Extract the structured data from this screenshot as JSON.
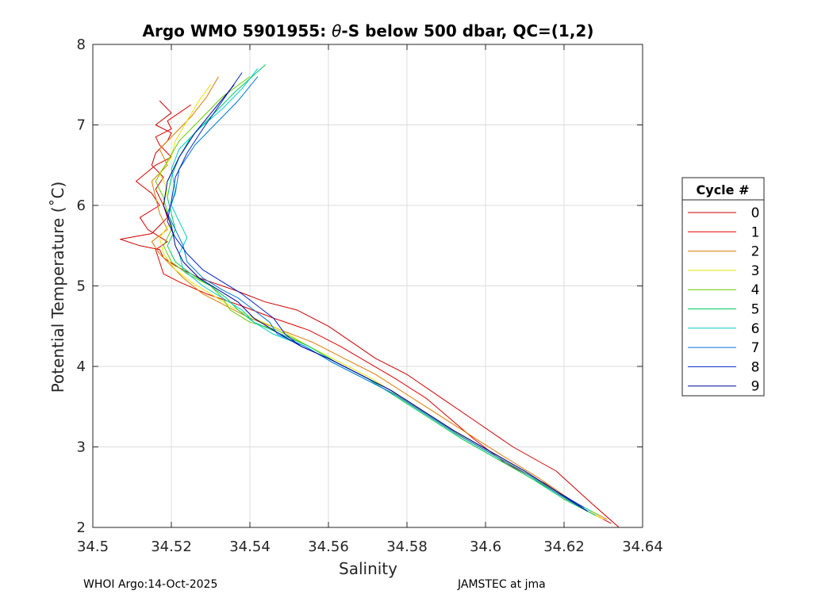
{
  "chart_data": {
    "type": "line",
    "title": "Argo WMO 5901955: θ-S below 500 dbar,  QC=(1,2)",
    "title_parts": {
      "prefix": "Argo WMO 5901955: ",
      "symbol": "θ",
      "suffix": "-S below 500 dbar,  QC=(1,2)"
    },
    "xlabel": "Salinity",
    "ylabel": "Potential Temperature (˚C)",
    "xlim": [
      34.5,
      34.64
    ],
    "ylim": [
      2,
      8
    ],
    "xticks": [
      "34.5",
      "34.52",
      "34.54",
      "34.56",
      "34.58",
      "34.6",
      "34.62",
      "34.64"
    ],
    "yticks": [
      "2",
      "3",
      "4",
      "5",
      "6",
      "7",
      "8"
    ],
    "grid": true,
    "legend": {
      "title": "Cycle #",
      "placement": "outside-right"
    },
    "series": [
      {
        "name": "0",
        "color": "#cc0000",
        "x": [
          34.634,
          34.627,
          34.618,
          34.607,
          34.598,
          34.589,
          34.58,
          34.572,
          34.566,
          34.56,
          34.552,
          34.544,
          34.536,
          34.527,
          34.521,
          34.518,
          34.517,
          34.512,
          34.507,
          34.515,
          34.517,
          34.519,
          34.518,
          34.516,
          34.518,
          34.515,
          34.516,
          34.519,
          34.52,
          34.516,
          34.52,
          34.517
        ],
        "y": [
          2.0,
          2.3,
          2.7,
          3.0,
          3.3,
          3.6,
          3.9,
          4.1,
          4.3,
          4.5,
          4.7,
          4.8,
          4.95,
          5.1,
          5.25,
          5.35,
          5.45,
          5.5,
          5.58,
          5.65,
          5.75,
          5.85,
          6.0,
          6.2,
          6.35,
          6.5,
          6.65,
          6.8,
          6.9,
          7.0,
          7.15,
          7.3
        ]
      },
      {
        "name": "1",
        "color": "#e00000",
        "x": [
          34.632,
          34.624,
          34.615,
          34.605,
          34.597,
          34.591,
          34.585,
          34.577,
          34.57,
          34.563,
          34.555,
          34.546,
          34.538,
          34.529,
          34.522,
          34.518,
          34.517,
          34.516,
          34.519,
          34.514,
          34.512,
          34.517,
          34.515,
          34.511,
          34.516,
          34.52,
          34.517,
          34.516,
          34.52,
          34.519,
          34.522,
          34.525
        ],
        "y": [
          2.05,
          2.25,
          2.55,
          2.8,
          3.1,
          3.35,
          3.6,
          3.85,
          4.05,
          4.25,
          4.45,
          4.6,
          4.75,
          4.9,
          5.05,
          5.15,
          5.3,
          5.45,
          5.55,
          5.7,
          5.85,
          6.0,
          6.15,
          6.3,
          6.5,
          6.6,
          6.75,
          6.85,
          6.95,
          7.05,
          7.15,
          7.25
        ]
      },
      {
        "name": "2",
        "color": "#e07a00",
        "x": [
          34.631,
          34.623,
          34.614,
          34.604,
          34.596,
          34.588,
          34.58,
          34.572,
          34.564,
          34.556,
          34.548,
          34.54,
          34.534,
          34.528,
          34.523,
          34.52,
          34.517,
          34.515,
          34.519,
          34.517,
          34.516,
          34.515,
          34.519,
          34.517,
          34.521,
          34.525,
          34.529,
          34.532
        ],
        "y": [
          2.1,
          2.3,
          2.6,
          2.9,
          3.15,
          3.4,
          3.65,
          3.9,
          4.1,
          4.3,
          4.45,
          4.6,
          4.75,
          4.9,
          5.1,
          5.25,
          5.4,
          5.55,
          5.7,
          5.9,
          6.1,
          6.3,
          6.5,
          6.7,
          6.9,
          7.1,
          7.35,
          7.6
        ]
      },
      {
        "name": "3",
        "color": "#e6e600",
        "x": [
          34.63,
          34.622,
          34.613,
          34.604,
          34.595,
          34.587,
          34.579,
          34.571,
          34.563,
          34.555,
          34.548,
          34.541,
          34.535,
          34.53,
          34.525,
          34.521,
          34.518,
          34.517,
          34.52,
          34.518,
          34.519,
          34.517,
          34.52,
          34.521,
          34.524,
          34.527,
          34.53
        ],
        "y": [
          2.1,
          2.3,
          2.6,
          2.85,
          3.1,
          3.35,
          3.6,
          3.85,
          4.05,
          4.25,
          4.45,
          4.6,
          4.75,
          4.9,
          5.05,
          5.2,
          5.4,
          5.6,
          5.8,
          6.0,
          6.2,
          6.4,
          6.6,
          6.8,
          7.05,
          7.3,
          7.5
        ]
      },
      {
        "name": "4",
        "color": "#66cc00",
        "x": [
          34.629,
          34.621,
          34.612,
          34.603,
          34.594,
          34.586,
          34.578,
          34.57,
          34.562,
          34.555,
          34.547,
          34.54,
          34.535,
          34.533,
          34.53,
          34.524,
          34.52,
          34.518,
          34.52,
          34.519,
          34.518,
          34.516,
          34.519,
          34.522,
          34.527,
          34.533,
          34.54
        ],
        "y": [
          2.15,
          2.35,
          2.6,
          2.85,
          3.1,
          3.35,
          3.6,
          3.85,
          4.05,
          4.25,
          4.45,
          4.55,
          4.7,
          4.85,
          5.0,
          5.15,
          5.3,
          5.5,
          5.7,
          5.9,
          6.1,
          6.3,
          6.55,
          6.8,
          7.05,
          7.35,
          7.6
        ]
      },
      {
        "name": "5",
        "color": "#00cc66",
        "x": [
          34.628,
          34.62,
          34.612,
          34.603,
          34.594,
          34.586,
          34.578,
          34.57,
          34.562,
          34.555,
          34.548,
          34.541,
          34.537,
          34.534,
          34.53,
          34.525,
          34.521,
          34.519,
          34.521,
          34.52,
          34.519,
          34.52,
          34.522,
          34.525,
          34.53,
          34.536,
          34.544
        ],
        "y": [
          2.15,
          2.35,
          2.6,
          2.85,
          3.1,
          3.35,
          3.6,
          3.85,
          4.05,
          4.25,
          4.4,
          4.55,
          4.7,
          4.85,
          5.0,
          5.15,
          5.3,
          5.5,
          5.7,
          5.9,
          6.1,
          6.35,
          6.6,
          6.85,
          7.1,
          7.4,
          7.75
        ]
      },
      {
        "name": "6",
        "color": "#00cccc",
        "x": [
          34.627,
          34.619,
          34.611,
          34.602,
          34.593,
          34.585,
          34.577,
          34.569,
          34.561,
          34.554,
          34.546,
          34.541,
          34.538,
          34.533,
          34.528,
          34.523,
          34.522,
          34.524,
          34.522,
          34.52,
          34.521,
          34.52,
          34.522,
          34.527,
          34.533,
          34.538,
          34.542
        ],
        "y": [
          2.2,
          2.4,
          2.65,
          2.9,
          3.15,
          3.4,
          3.65,
          3.85,
          4.05,
          4.25,
          4.4,
          4.55,
          4.7,
          4.85,
          5.0,
          5.2,
          5.4,
          5.6,
          5.8,
          6.0,
          6.2,
          6.45,
          6.7,
          6.95,
          7.2,
          7.45,
          7.7
        ]
      },
      {
        "name": "7",
        "color": "#0077dd",
        "x": [
          34.626,
          34.619,
          34.611,
          34.602,
          34.593,
          34.585,
          34.577,
          34.569,
          34.561,
          34.554,
          34.547,
          34.545,
          34.541,
          34.537,
          34.533,
          34.528,
          34.524,
          34.523,
          34.521,
          34.519,
          34.521,
          34.522,
          34.526,
          34.531,
          34.537,
          34.542
        ],
        "y": [
          2.2,
          2.4,
          2.65,
          2.9,
          3.15,
          3.4,
          3.65,
          3.85,
          4.05,
          4.25,
          4.4,
          4.55,
          4.7,
          4.85,
          4.95,
          5.1,
          5.3,
          5.5,
          5.7,
          5.9,
          6.15,
          6.45,
          6.75,
          7.0,
          7.3,
          7.6
        ]
      },
      {
        "name": "8",
        "color": "#0022cc",
        "x": [
          34.625,
          34.618,
          34.61,
          34.601,
          34.592,
          34.584,
          34.576,
          34.568,
          34.56,
          34.553,
          34.549,
          34.546,
          34.542,
          34.538,
          34.533,
          34.528,
          34.524,
          34.521,
          34.519,
          34.52,
          34.521,
          34.524,
          34.528,
          34.533,
          34.538
        ],
        "y": [
          2.25,
          2.45,
          2.7,
          2.95,
          3.2,
          3.45,
          3.7,
          3.9,
          4.1,
          4.25,
          4.4,
          4.6,
          4.75,
          4.9,
          5.05,
          5.2,
          5.4,
          5.6,
          5.8,
          6.05,
          6.35,
          6.65,
          6.95,
          7.3,
          7.65
        ]
      },
      {
        "name": "9",
        "color": "#000099",
        "x": [
          34.626,
          34.618,
          34.61,
          34.601,
          34.592,
          34.584,
          34.576,
          34.568,
          34.56,
          34.553,
          34.546,
          34.541,
          34.537,
          34.532,
          34.527,
          34.523,
          34.521,
          34.52,
          34.518,
          34.519,
          34.522,
          34.526,
          34.531,
          34.536
        ],
        "y": [
          2.2,
          2.45,
          2.7,
          2.95,
          3.2,
          3.45,
          3.7,
          3.9,
          4.1,
          4.25,
          4.45,
          4.6,
          4.8,
          4.95,
          5.1,
          5.3,
          5.5,
          5.75,
          6.0,
          6.3,
          6.6,
          6.9,
          7.2,
          7.5
        ]
      }
    ]
  },
  "footer": {
    "left": "WHOI Argo:14-Oct-2025",
    "right": "JAMSTEC at jma"
  }
}
